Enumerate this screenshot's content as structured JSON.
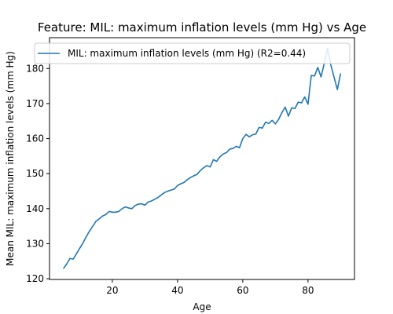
{
  "chart_data": {
    "type": "line",
    "title": "Feature: MIL: maximum inflation levels (mm Hg) vs Age",
    "xlabel": "Age",
    "ylabel": "Mean MIL: maximum inflation levels (mm Hg)",
    "xlim": [
      0.75,
      94.25
    ],
    "ylim": [
      119.8,
      188.8
    ],
    "xticks": [
      20,
      40,
      60,
      80
    ],
    "yticks": [
      120,
      130,
      140,
      150,
      160,
      170,
      180
    ],
    "grid": false,
    "legend_position": "top-right",
    "colors": {
      "series": "#1f77b4"
    },
    "series": [
      {
        "name": "MIL: maximum inflation levels (mm Hg) (R2=0.44)",
        "x": [
          5,
          6,
          7,
          8,
          9,
          10,
          11,
          12,
          13,
          14,
          15,
          16,
          17,
          18,
          19,
          20,
          21,
          22,
          23,
          24,
          25,
          26,
          27,
          28,
          29,
          30,
          31,
          32,
          33,
          34,
          35,
          36,
          37,
          38,
          39,
          40,
          41,
          42,
          43,
          44,
          45,
          46,
          47,
          48,
          49,
          50,
          51,
          52,
          53,
          54,
          55,
          56,
          57,
          58,
          59,
          60,
          61,
          62,
          63,
          64,
          65,
          66,
          67,
          68,
          69,
          70,
          71,
          72,
          73,
          74,
          75,
          76,
          77,
          78,
          79,
          80,
          81,
          82,
          83,
          84,
          85,
          86,
          87,
          88,
          89,
          90
        ],
        "y": [
          122.9,
          124.2,
          125.8,
          125.6,
          127.1,
          128.7,
          130.2,
          132.0,
          133.6,
          135.0,
          136.4,
          137.1,
          137.9,
          138.3,
          139.2,
          139.0,
          139.0,
          139.2,
          140.0,
          140.5,
          140.2,
          140.0,
          140.9,
          141.3,
          141.4,
          141.0,
          141.9,
          142.2,
          142.7,
          143.2,
          143.9,
          144.6,
          145.0,
          145.3,
          145.6,
          146.6,
          147.1,
          147.5,
          148.3,
          148.9,
          149.4,
          149.8,
          150.9,
          151.7,
          152.3,
          151.9,
          154.0,
          153.5,
          154.8,
          155.6,
          156.0,
          157.0,
          157.2,
          157.8,
          157.4,
          160.0,
          161.2,
          160.5,
          161.1,
          161.3,
          163.2,
          163.0,
          164.7,
          164.3,
          165.2,
          164.2,
          165.5,
          167.4,
          169.0,
          166.4,
          168.8,
          168.6,
          170.4,
          170.2,
          171.9,
          169.8,
          178.0,
          177.9,
          180.3,
          177.6,
          181.5,
          185.8,
          181.0,
          177.5,
          174.0,
          178.6
        ]
      }
    ]
  }
}
